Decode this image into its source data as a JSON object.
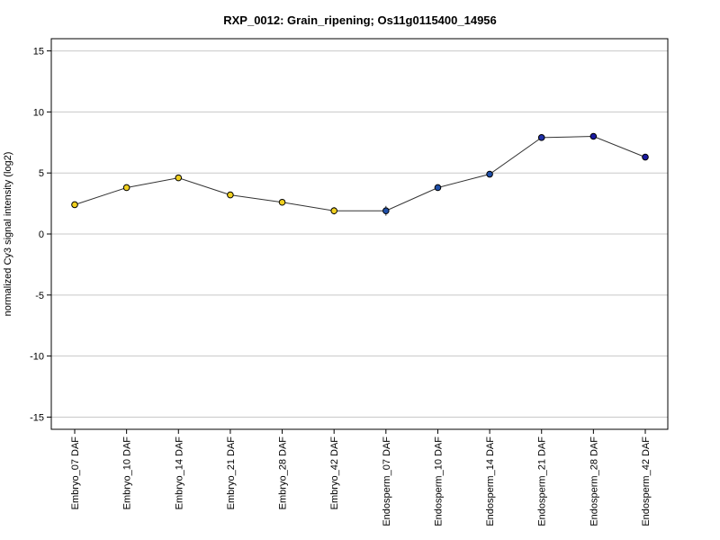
{
  "chart_data": {
    "type": "line",
    "title": "RXP_0012: Grain_ripening; Os11g0115400_14956",
    "ylabel": "normalized Cy3 signal intensity (log2)",
    "xlabel": "",
    "ylim": [
      -16,
      16
    ],
    "yticks": [
      -15,
      -10,
      -5,
      0,
      5,
      10,
      15
    ],
    "grid": true,
    "categories": [
      "Embryo_07 DAF",
      "Embryo_10 DAF",
      "Embryo_14 DAF",
      "Embryo_21 DAF",
      "Embryo_28 DAF",
      "Embryo_42 DAF",
      "Endosperm_07 DAF",
      "Endosperm_10 DAF",
      "Endosperm_14 DAF",
      "Endosperm_21 DAF",
      "Endosperm_28 DAF",
      "Endosperm_42 DAF"
    ],
    "series": [
      {
        "values": [
          2.4,
          3.8,
          4.6,
          3.2,
          2.6,
          1.9,
          1.9,
          3.8,
          4.9,
          7.9,
          8.0,
          6.3
        ],
        "errors": [
          0.15,
          0.15,
          0.15,
          0.1,
          0.15,
          0.3,
          0.4,
          0.2,
          0.2,
          0.15,
          0.1,
          0.1
        ],
        "point_colors": [
          "#f0d020",
          "#f0d020",
          "#f0d020",
          "#f0d020",
          "#f0d020",
          "#f0d020",
          "#1f4fa8",
          "#1f4fa8",
          "#1f4fa8",
          "#1f2fa8",
          "#1a1aa0",
          "#1a1aa0"
        ]
      }
    ]
  }
}
